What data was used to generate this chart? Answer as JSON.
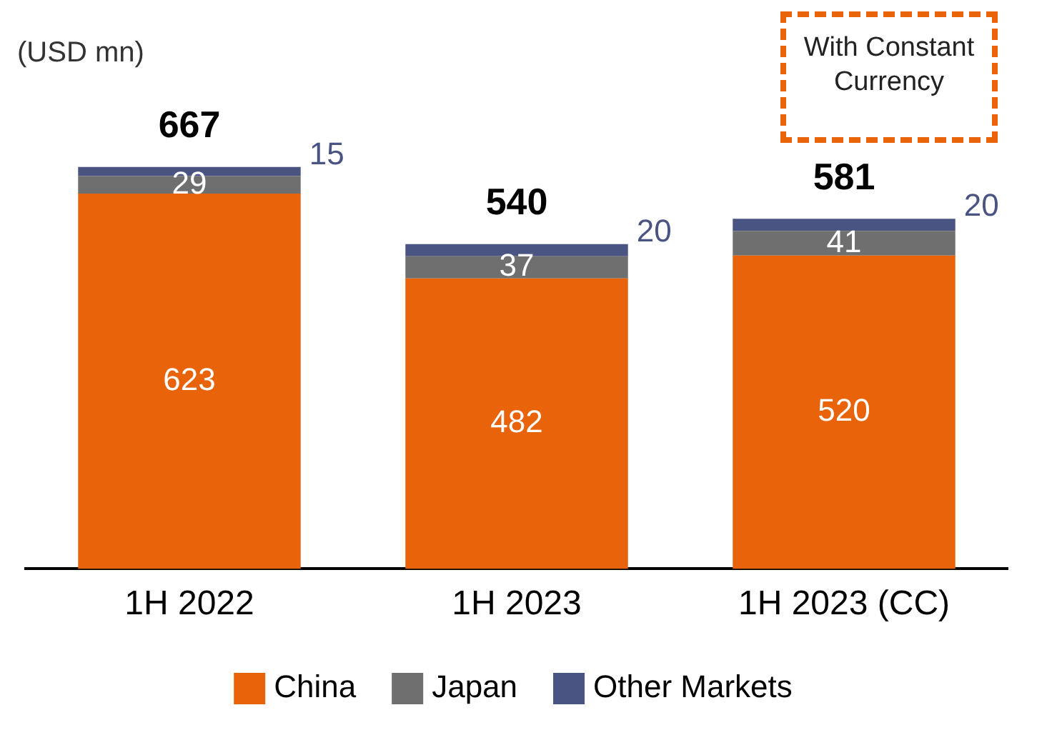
{
  "chart_data": {
    "type": "bar",
    "stacked": true,
    "ylabel": "(USD mn)",
    "categories": [
      "1H 2022",
      "1H 2023",
      "1H 2023 (CC)"
    ],
    "series": [
      {
        "name": "China",
        "color": "#e8630a",
        "values": [
          623,
          482,
          520
        ]
      },
      {
        "name": "Japan",
        "color": "#6f6f6f",
        "values": [
          29,
          37,
          41
        ]
      },
      {
        "name": "Other Markets",
        "color": "#4a5483",
        "values": [
          15,
          20,
          20
        ]
      }
    ],
    "totals": [
      "667",
      "540",
      "581"
    ],
    "data_labels": true,
    "legend": "bottom",
    "grid": false,
    "annotations": [
      "With Constant Currency"
    ]
  }
}
